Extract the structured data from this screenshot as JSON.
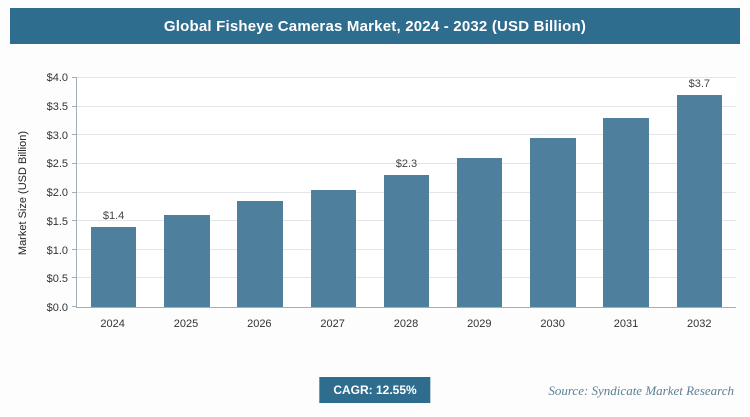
{
  "header": {
    "title": "Global Fisheye Cameras Market, 2024 - 2032 (USD Billion)"
  },
  "chart_data": {
    "type": "bar",
    "title": "Global Fisheye Cameras Market, 2024 - 2032 (USD Billion)",
    "categories": [
      "2024",
      "2025",
      "2026",
      "2027",
      "2028",
      "2029",
      "2030",
      "2031",
      "2032"
    ],
    "values": [
      1.4,
      1.6,
      1.85,
      2.05,
      2.3,
      2.6,
      2.95,
      3.3,
      3.7
    ],
    "bar_labels": [
      "$1.4",
      "",
      "",
      "",
      "$2.3",
      "",
      "",
      "",
      "$3.7"
    ],
    "xlabel": "",
    "ylabel": "Market Size (USD Billion)",
    "ylim": [
      0,
      4
    ],
    "ytick_step": 0.5,
    "ytick_labels": [
      "$0.0",
      "$0.5",
      "$1.0",
      "$1.5",
      "$2.0",
      "$2.5",
      "$3.0",
      "$3.5",
      "$4.0"
    ],
    "grid": true,
    "legend": false,
    "bar_color": "#4e7f9d"
  },
  "footer": {
    "cagr_label": "CAGR: 12.55%",
    "source": "Source: Syndicate Market Research"
  },
  "colors": {
    "accent": "#2e6d8e",
    "bar": "#4e7f9d",
    "gridline": "#e3e6e8"
  }
}
